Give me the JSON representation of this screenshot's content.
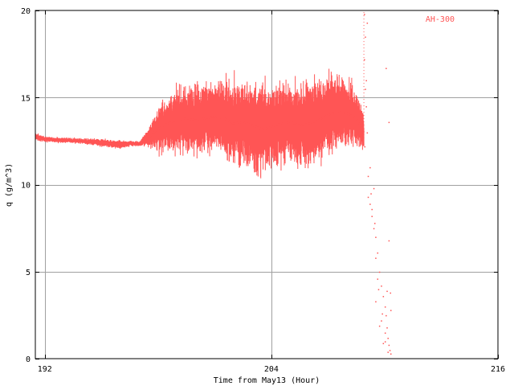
{
  "chart_data": {
    "type": "scatter",
    "xlabel": "Time from May13 (Hour)",
    "ylabel": "q (g/m^3)",
    "xlim": [
      191.5,
      216
    ],
    "ylim": [
      0,
      20
    ],
    "x_ticks": [
      192,
      204,
      216
    ],
    "x_tick_labels": [
      "192",
      "204",
      "216"
    ],
    "y_ticks": [
      0,
      5,
      10,
      15,
      20
    ],
    "y_tick_labels": [
      "0",
      "5",
      "10",
      "15",
      "20"
    ],
    "grid": true,
    "legend": "top-right",
    "series": [
      {
        "name": "AH-300",
        "color": "#ff5555",
        "envelope": {
          "x": [
            191.5,
            192,
            193,
            194,
            195,
            196,
            196.5,
            197,
            197.5,
            198,
            198.5,
            199,
            199.5,
            200,
            200.5,
            201,
            201.5,
            202,
            202.5,
            203,
            203.5,
            204,
            204.5,
            205,
            205.5,
            206,
            206.5,
            207,
            207.5,
            208,
            208.5,
            208.9
          ],
          "center": [
            12.75,
            12.6,
            12.55,
            12.5,
            12.4,
            12.3,
            12.35,
            12.35,
            12.7,
            13.2,
            13.5,
            13.7,
            13.8,
            13.7,
            13.8,
            13.9,
            13.8,
            13.5,
            13.6,
            13.4,
            13.2,
            13.3,
            13.5,
            13.6,
            13.4,
            13.5,
            13.7,
            14.0,
            14.2,
            14.1,
            13.8,
            13.0
          ],
          "spread": [
            0.15,
            0.1,
            0.1,
            0.1,
            0.15,
            0.15,
            0.1,
            0.1,
            0.35,
            0.8,
            1.0,
            1.2,
            1.3,
            1.4,
            1.4,
            1.3,
            1.4,
            1.6,
            1.5,
            1.7,
            1.8,
            1.5,
            1.6,
            1.4,
            1.6,
            1.7,
            1.6,
            1.5,
            1.3,
            1.2,
            1.0,
            0.8
          ]
        },
        "scatter_points": {
          "x": [
            208.9,
            208.95,
            209.0,
            209.05,
            209.1,
            209.2,
            209.3,
            209.4,
            209.5,
            209.6,
            209.7,
            209.8,
            209.9,
            210.0,
            210.05,
            210.1,
            210.15,
            210.2,
            210.25,
            210.3,
            208.9,
            209.0,
            209.2,
            209.4,
            209.5,
            209.6,
            209.8,
            210.0,
            210.1,
            210.2,
            210.3,
            208.95,
            209.1,
            209.3,
            209.5,
            209.7,
            209.9,
            210.05,
            210.2,
            208.92,
            209.05,
            209.25,
            209.45,
            209.65,
            209.85,
            210.0,
            210.15,
            210.28
          ],
          "y": [
            19.8,
            18.5,
            16.0,
            13.0,
            9.3,
            8.9,
            8.2,
            7.5,
            7.0,
            6.1,
            5.0,
            4.2,
            3.6,
            3.0,
            2.5,
            1.8,
            1.2,
            0.8,
            0.5,
            0.3,
            17.2,
            14.5,
            11.0,
            9.8,
            5.8,
            4.6,
            2.2,
            1.5,
            3.9,
            6.8,
            2.8,
            15.5,
            10.5,
            8.6,
            3.3,
            1.9,
            0.9,
            16.7,
            13.6,
            12.2,
            19.3,
            9.5,
            7.8,
            4.0,
            2.6,
            1.0,
            0.4,
            3.8
          ]
        }
      }
    ]
  }
}
